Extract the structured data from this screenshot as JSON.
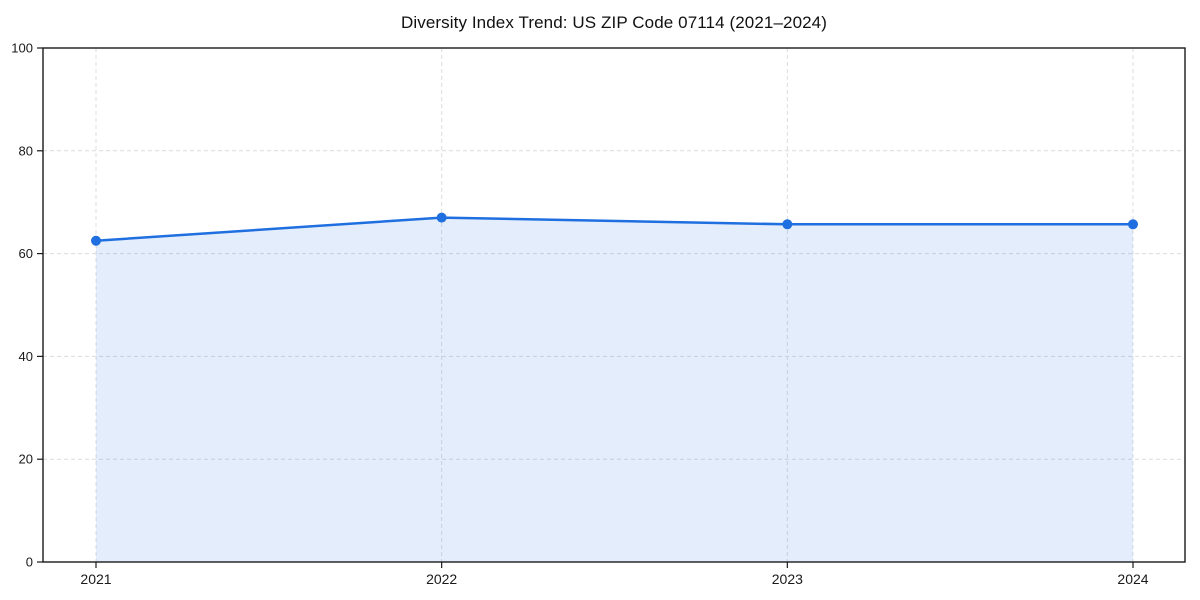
{
  "figure": {
    "title": "Diversity Index Trend: US ZIP Code 07114 (2021–2024)"
  },
  "chart_data": {
    "type": "area",
    "title": "Diversity Index Trend: US ZIP Code 07114 (2021–2024)",
    "x": [
      2021,
      2022,
      2023,
      2024
    ],
    "xticks": [
      "2021",
      "2022",
      "2023",
      "2024"
    ],
    "series": [
      {
        "name": "Diversity Index",
        "values": [
          62.5,
          67.0,
          65.7,
          65.7
        ]
      }
    ],
    "xlabel": "",
    "ylabel": "",
    "ylim": [
      0,
      100
    ],
    "yticks": [
      0,
      20,
      40,
      60,
      80,
      100
    ],
    "grid": true,
    "grid_style": "dashed",
    "legend": false,
    "colors": {
      "line": "#1f6fe0",
      "marker": "#1f6fe0",
      "fill": "rgba(31,111,224,0.12)",
      "grid": "#dcdcdc",
      "spine": "#1a1a1a",
      "tick_label": "#1a1a1a",
      "background": "#ffffff"
    }
  }
}
